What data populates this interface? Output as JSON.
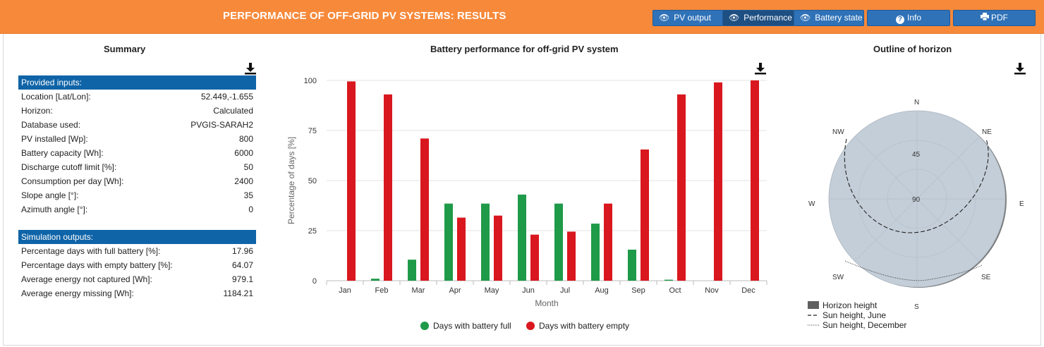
{
  "header": {
    "title": "PERFORMANCE OF OFF-GRID PV SYSTEMS: RESULTS",
    "buttons": {
      "pv_output": "PV output",
      "performance": "Performance",
      "battery_state": "Battery state",
      "info": "Info",
      "pdf": "PDF"
    }
  },
  "summary": {
    "title": "Summary",
    "inputs_header": "Provided inputs:",
    "inputs": [
      {
        "label": "Location [Lat/Lon]:",
        "value": "52.449,-1.655"
      },
      {
        "label": "Horizon:",
        "value": "Calculated"
      },
      {
        "label": "Database used:",
        "value": "PVGIS-SARAH2"
      },
      {
        "label": "PV installed [Wp]:",
        "value": "800"
      },
      {
        "label": "Battery capacity [Wh]:",
        "value": "6000"
      },
      {
        "label": "Discharge cutoff limit [%]:",
        "value": "50"
      },
      {
        "label": "Consumption per day [Wh]:",
        "value": "2400"
      },
      {
        "label": "Slope angle [°]:",
        "value": "35"
      },
      {
        "label": "Azimuth angle [°]:",
        "value": "0"
      }
    ],
    "outputs_header": "Simulation outputs:",
    "outputs": [
      {
        "label": "Percentage days with full battery [%]:",
        "value": "17.96"
      },
      {
        "label": "Percentage days with empty battery [%]:",
        "value": "64.07"
      },
      {
        "label": "Average energy not captured [Wh]:",
        "value": "979.1"
      },
      {
        "label": "Average energy missing [Wh]:",
        "value": "1184.21"
      }
    ]
  },
  "chart_data": [
    {
      "type": "bar",
      "title": "Battery performance for off-grid PV system",
      "xlabel": "Month",
      "ylabel": "Percentage of days [%]",
      "ylim": [
        0,
        100
      ],
      "yticks": [
        0,
        25,
        50,
        75,
        100
      ],
      "grid": true,
      "legend_position": "bottom",
      "categories": [
        "Jan",
        "Feb",
        "Mar",
        "Apr",
        "May",
        "Jun",
        "Jul",
        "Aug",
        "Sep",
        "Oct",
        "Nov",
        "Dec"
      ],
      "series": [
        {
          "name": "Days with battery full",
          "color": "#1f9a48",
          "values": [
            0,
            1,
            10.5,
            38.5,
            38.5,
            43,
            38.5,
            28.5,
            15.5,
            0.5,
            0,
            0
          ]
        },
        {
          "name": "Days with battery empty",
          "color": "#d9171e",
          "values": [
            99.5,
            93,
            71,
            31.5,
            32.5,
            23,
            24.5,
            38.5,
            65.5,
            93,
            99,
            100
          ]
        }
      ]
    },
    {
      "type": "polar",
      "title": "Outline of horizon",
      "directions": [
        "N",
        "NE",
        "E",
        "SE",
        "S",
        "SW",
        "W",
        "NW"
      ],
      "radial_labels": [
        "45",
        "90"
      ],
      "legend": [
        {
          "name": "Horizon height",
          "style": "filled-box",
          "color": "#606060"
        },
        {
          "name": "Sun height, June",
          "style": "dashed"
        },
        {
          "name": "Sun height, December",
          "style": "dotted"
        }
      ],
      "disk_color": "#c4ced8"
    }
  ],
  "icons": {
    "view": "eye-icon",
    "info": "info-icon",
    "pdf": "printer-icon",
    "download": "download-icon"
  }
}
